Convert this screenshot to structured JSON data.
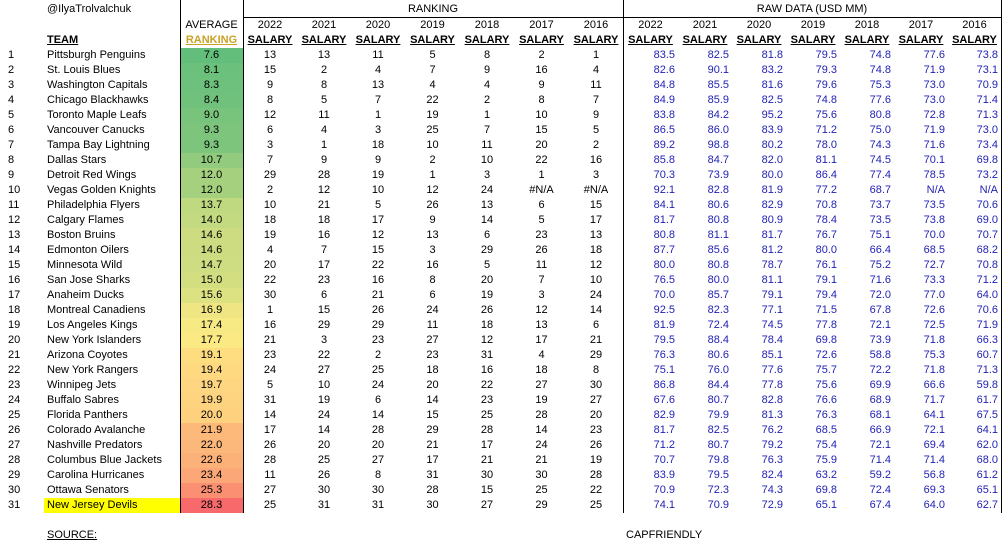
{
  "header": {
    "handle": "@IlyaTrolvalchuk",
    "ranking_group": "RANKING",
    "raw_group": "RAW DATA (USD MM)",
    "average": "AVERAGE",
    "average_sub": "RANKING",
    "team": "TEAM",
    "years": [
      "2022",
      "2021",
      "2020",
      "2019",
      "2018",
      "2017",
      "2016"
    ],
    "salary": "SALARY"
  },
  "table": {
    "rows": [
      [
        "1",
        "Pittsburgh Penguins",
        "7.6",
        "13",
        "13",
        "11",
        "5",
        "8",
        "2",
        "1",
        "83.5",
        "82.5",
        "81.8",
        "79.5",
        "74.8",
        "77.6",
        "73.8"
      ],
      [
        "2",
        "St. Louis Blues",
        "8.1",
        "15",
        "2",
        "4",
        "7",
        "9",
        "16",
        "4",
        "82.6",
        "90.1",
        "83.2",
        "79.3",
        "74.8",
        "71.9",
        "73.1"
      ],
      [
        "3",
        "Washington Capitals",
        "8.3",
        "9",
        "8",
        "13",
        "4",
        "4",
        "9",
        "11",
        "84.8",
        "85.5",
        "81.6",
        "79.6",
        "75.3",
        "73.0",
        "70.9"
      ],
      [
        "4",
        "Chicago Blackhawks",
        "8.4",
        "8",
        "5",
        "7",
        "22",
        "2",
        "8",
        "7",
        "84.9",
        "85.9",
        "82.5",
        "74.8",
        "77.6",
        "73.0",
        "71.4"
      ],
      [
        "5",
        "Toronto Maple Leafs",
        "9.0",
        "12",
        "11",
        "1",
        "19",
        "1",
        "10",
        "9",
        "83.8",
        "84.2",
        "95.2",
        "75.6",
        "80.8",
        "72.8",
        "71.3"
      ],
      [
        "6",
        "Vancouver Canucks",
        "9.3",
        "6",
        "4",
        "3",
        "25",
        "7",
        "15",
        "5",
        "86.5",
        "86.0",
        "83.9",
        "71.2",
        "75.0",
        "71.9",
        "73.0"
      ],
      [
        "7",
        "Tampa Bay Lightning",
        "9.3",
        "3",
        "1",
        "18",
        "10",
        "11",
        "20",
        "2",
        "89.2",
        "98.8",
        "80.2",
        "78.0",
        "74.3",
        "71.6",
        "73.4"
      ],
      [
        "8",
        "Dallas Stars",
        "10.7",
        "7",
        "9",
        "9",
        "2",
        "10",
        "22",
        "16",
        "85.8",
        "84.7",
        "82.0",
        "81.1",
        "74.5",
        "70.1",
        "69.8"
      ],
      [
        "9",
        "Detroit Red Wings",
        "12.0",
        "29",
        "28",
        "19",
        "1",
        "3",
        "1",
        "3",
        "70.3",
        "73.9",
        "80.0",
        "86.4",
        "77.4",
        "78.5",
        "73.2"
      ],
      [
        "10",
        "Vegas Golden Knights",
        "12.0",
        "2",
        "12",
        "10",
        "12",
        "24",
        "#N/A",
        "#N/A",
        "92.1",
        "82.8",
        "81.9",
        "77.2",
        "68.7",
        "N/A",
        "N/A"
      ],
      [
        "11",
        "Philadelphia Flyers",
        "13.7",
        "10",
        "21",
        "5",
        "26",
        "13",
        "6",
        "15",
        "84.1",
        "80.6",
        "82.9",
        "70.8",
        "73.7",
        "73.5",
        "70.6"
      ],
      [
        "12",
        "Calgary Flames",
        "14.0",
        "18",
        "18",
        "17",
        "9",
        "14",
        "5",
        "17",
        "81.7",
        "80.8",
        "80.9",
        "78.4",
        "73.5",
        "73.8",
        "69.0"
      ],
      [
        "13",
        "Boston Bruins",
        "14.6",
        "19",
        "16",
        "12",
        "13",
        "6",
        "23",
        "13",
        "80.8",
        "81.1",
        "81.7",
        "76.7",
        "75.1",
        "70.0",
        "70.7"
      ],
      [
        "14",
        "Edmonton Oilers",
        "14.6",
        "4",
        "7",
        "15",
        "3",
        "29",
        "26",
        "18",
        "87.7",
        "85.6",
        "81.2",
        "80.0",
        "66.4",
        "68.5",
        "68.2"
      ],
      [
        "15",
        "Minnesota Wild",
        "14.7",
        "20",
        "17",
        "22",
        "16",
        "5",
        "11",
        "12",
        "80.0",
        "80.8",
        "78.7",
        "76.1",
        "75.2",
        "72.7",
        "70.8"
      ],
      [
        "16",
        "San Jose Sharks",
        "15.0",
        "22",
        "23",
        "16",
        "8",
        "20",
        "7",
        "10",
        "76.5",
        "80.0",
        "81.1",
        "79.1",
        "71.6",
        "73.3",
        "71.2"
      ],
      [
        "17",
        "Anaheim Ducks",
        "15.6",
        "30",
        "6",
        "21",
        "6",
        "19",
        "3",
        "24",
        "70.0",
        "85.7",
        "79.1",
        "79.4",
        "72.0",
        "77.0",
        "64.0"
      ],
      [
        "18",
        "Montreal Canadiens",
        "16.9",
        "1",
        "15",
        "26",
        "24",
        "26",
        "12",
        "14",
        "92.5",
        "82.3",
        "77.1",
        "71.5",
        "67.8",
        "72.6",
        "70.6"
      ],
      [
        "19",
        "Los Angeles Kings",
        "17.4",
        "16",
        "29",
        "29",
        "11",
        "18",
        "13",
        "6",
        "81.9",
        "72.4",
        "74.5",
        "77.8",
        "72.1",
        "72.5",
        "71.9"
      ],
      [
        "20",
        "New York Islanders",
        "17.7",
        "21",
        "3",
        "23",
        "27",
        "12",
        "17",
        "21",
        "79.5",
        "88.4",
        "78.4",
        "69.8",
        "73.9",
        "71.8",
        "66.3"
      ],
      [
        "21",
        "Arizona Coyotes",
        "19.1",
        "23",
        "22",
        "2",
        "23",
        "31",
        "4",
        "29",
        "76.3",
        "80.6",
        "85.1",
        "72.6",
        "58.8",
        "75.3",
        "60.7"
      ],
      [
        "22",
        "New York Rangers",
        "19.4",
        "24",
        "27",
        "25",
        "18",
        "16",
        "18",
        "8",
        "75.1",
        "76.0",
        "77.6",
        "75.7",
        "72.2",
        "71.8",
        "71.3"
      ],
      [
        "23",
        "Winnipeg Jets",
        "19.7",
        "5",
        "10",
        "24",
        "20",
        "22",
        "27",
        "30",
        "86.8",
        "84.4",
        "77.8",
        "75.6",
        "69.9",
        "66.6",
        "59.8"
      ],
      [
        "24",
        "Buffalo Sabres",
        "19.9",
        "31",
        "19",
        "6",
        "14",
        "23",
        "19",
        "27",
        "67.6",
        "80.7",
        "82.8",
        "76.6",
        "68.9",
        "71.7",
        "61.7"
      ],
      [
        "25",
        "Florida Panthers",
        "20.0",
        "14",
        "24",
        "14",
        "15",
        "25",
        "28",
        "20",
        "82.9",
        "79.9",
        "81.3",
        "76.3",
        "68.1",
        "64.1",
        "67.5"
      ],
      [
        "26",
        "Colorado Avalanche",
        "21.9",
        "17",
        "14",
        "28",
        "29",
        "28",
        "14",
        "23",
        "81.7",
        "82.5",
        "76.2",
        "68.5",
        "66.9",
        "72.1",
        "64.1"
      ],
      [
        "27",
        "Nashville Predators",
        "22.0",
        "26",
        "20",
        "20",
        "21",
        "17",
        "24",
        "26",
        "71.2",
        "80.7",
        "79.2",
        "75.4",
        "72.1",
        "69.4",
        "62.0"
      ],
      [
        "28",
        "Columbus Blue Jackets",
        "22.6",
        "28",
        "25",
        "27",
        "17",
        "21",
        "21",
        "19",
        "70.7",
        "79.8",
        "76.3",
        "75.9",
        "71.4",
        "71.4",
        "68.0"
      ],
      [
        "29",
        "Carolina Hurricanes",
        "23.4",
        "11",
        "26",
        "8",
        "31",
        "30",
        "30",
        "28",
        "83.9",
        "79.5",
        "82.4",
        "63.2",
        "59.2",
        "56.8",
        "61.2"
      ],
      [
        "30",
        "Ottawa Senators",
        "25.3",
        "27",
        "30",
        "30",
        "28",
        "15",
        "25",
        "22",
        "70.9",
        "72.3",
        "74.3",
        "69.8",
        "72.4",
        "69.3",
        "65.1"
      ],
      [
        "31",
        "New Jersey Devils",
        "28.3",
        "25",
        "31",
        "31",
        "30",
        "27",
        "29",
        "25",
        "74.1",
        "70.9",
        "72.9",
        "65.1",
        "67.4",
        "64.0",
        "62.7"
      ]
    ]
  },
  "footer": {
    "source": "SOURCE:",
    "source_name": "CAPFRIENDLY"
  }
}
